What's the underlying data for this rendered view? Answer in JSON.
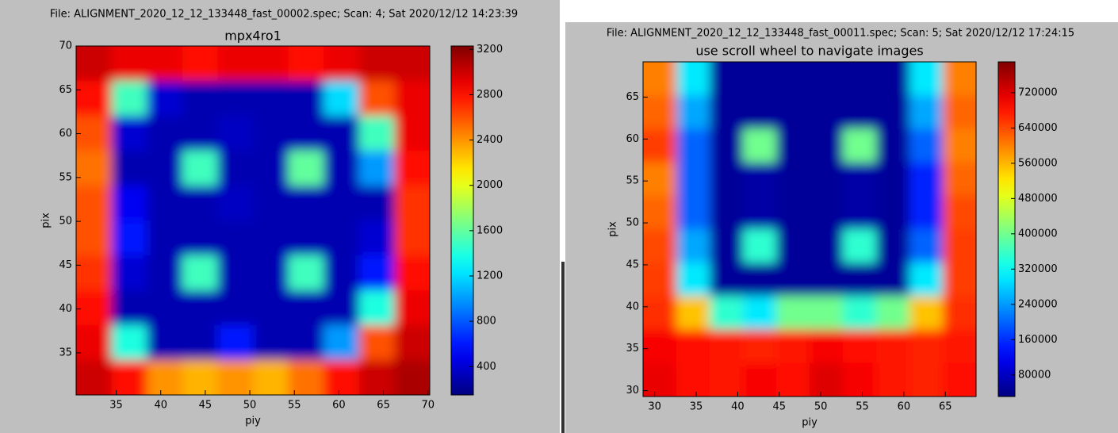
{
  "chart_data": [
    {
      "type": "heatmap",
      "title": "File: ALIGNMENT_2020_12_12_133448_fast_00002.spec; Scan: 4; Sat 2020/12/12 14:23:39",
      "subtitle": "mpx4ro1",
      "xlabel": "piy",
      "ylabel": "pix",
      "colormap": "jet",
      "xlim": [
        30.5,
        70.2
      ],
      "ylim": [
        30.2,
        70
      ],
      "xticks": [
        35,
        40,
        45,
        50,
        55,
        60,
        65,
        70
      ],
      "yticks": [
        35,
        40,
        45,
        50,
        55,
        60,
        65,
        70
      ],
      "clim": [
        150,
        3230
      ],
      "cticks": [
        400,
        800,
        1200,
        1600,
        2000,
        2400,
        2800,
        3200
      ],
      "z": [
        [
          3000,
          2900,
          2900,
          2800,
          2900,
          2900,
          2800,
          2900,
          3000,
          3000
        ],
        [
          2800,
          1500,
          400,
          300,
          300,
          300,
          300,
          1200,
          2600,
          2900
        ],
        [
          2600,
          400,
          300,
          300,
          350,
          300,
          300,
          300,
          1500,
          2900
        ],
        [
          2500,
          300,
          300,
          1500,
          300,
          300,
          1600,
          300,
          1000,
          2800
        ],
        [
          2600,
          500,
          300,
          300,
          350,
          300,
          300,
          300,
          300,
          2700
        ],
        [
          2600,
          600,
          300,
          300,
          300,
          300,
          300,
          300,
          400,
          2700
        ],
        [
          2700,
          400,
          300,
          1500,
          300,
          300,
          1500,
          300,
          600,
          2800
        ],
        [
          2800,
          300,
          300,
          300,
          300,
          300,
          300,
          300,
          1400,
          2900
        ],
        [
          2900,
          1400,
          300,
          300,
          600,
          300,
          300,
          1000,
          2600,
          3000
        ],
        [
          3000,
          2800,
          2400,
          2300,
          2400,
          2300,
          2500,
          2800,
          3000,
          3100
        ]
      ]
    },
    {
      "type": "heatmap",
      "title": "File: ALIGNMENT_2020_12_12_133448_fast_00011.spec; Scan: 5; Sat 2020/12/12 17:24:15",
      "subtitle": "use scroll wheel to navigate images",
      "xlabel": "piy",
      "ylabel": "pix",
      "colormap": "jet",
      "xlim": [
        28.6,
        68.7
      ],
      "ylim": [
        29.3,
        69.2
      ],
      "xticks": [
        30,
        35,
        40,
        45,
        50,
        55,
        60,
        65
      ],
      "yticks": [
        30,
        35,
        40,
        45,
        50,
        55,
        60,
        65
      ],
      "clim": [
        31000,
        790000
      ],
      "cticks": [
        80000,
        160000,
        240000,
        320000,
        400000,
        480000,
        560000,
        640000,
        720000
      ],
      "z": [
        [
          600000,
          300000,
          50000,
          50000,
          50000,
          50000,
          50000,
          50000,
          300000,
          600000
        ],
        [
          620000,
          250000,
          50000,
          50000,
          50000,
          50000,
          50000,
          50000,
          250000,
          620000
        ],
        [
          650000,
          200000,
          50000,
          400000,
          50000,
          50000,
          400000,
          50000,
          200000,
          600000
        ],
        [
          600000,
          200000,
          50000,
          60000,
          50000,
          50000,
          60000,
          50000,
          150000,
          620000
        ],
        [
          620000,
          200000,
          50000,
          60000,
          50000,
          50000,
          60000,
          50000,
          150000,
          640000
        ],
        [
          640000,
          250000,
          50000,
          350000,
          50000,
          50000,
          350000,
          50000,
          200000,
          650000
        ],
        [
          650000,
          300000,
          50000,
          50000,
          50000,
          50000,
          50000,
          50000,
          300000,
          650000
        ],
        [
          660000,
          550000,
          350000,
          300000,
          400000,
          400000,
          350000,
          400000,
          550000,
          660000
        ],
        [
          700000,
          690000,
          680000,
          670000,
          680000,
          700000,
          690000,
          680000,
          670000,
          680000
        ],
        [
          710000,
          690000,
          680000,
          700000,
          690000,
          720000,
          700000,
          680000,
          670000,
          690000
        ]
      ]
    }
  ]
}
